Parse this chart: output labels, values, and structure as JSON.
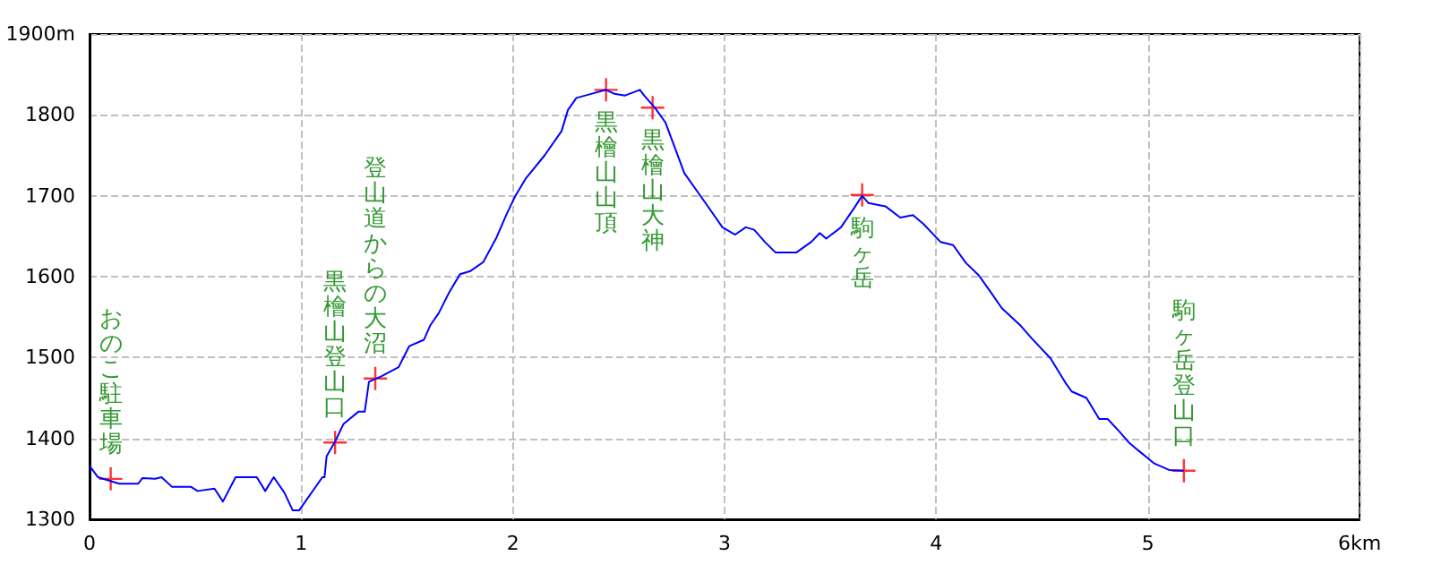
{
  "chart_data": {
    "type": "line",
    "xlim": [
      0,
      6
    ],
    "ylim": [
      1300,
      1900
    ],
    "xticks": [
      0,
      1,
      2,
      3,
      4,
      5,
      {
        "value": 6,
        "label": "6km"
      }
    ],
    "yticks": [
      1300,
      1400,
      1500,
      1600,
      1700,
      1800,
      {
        "value": 1900,
        "label": "1900m"
      }
    ],
    "grid": true,
    "marker": "none",
    "line_style": "solid",
    "series": [
      {
        "color": "#0000ff",
        "x": [
          0,
          0.04,
          0.14,
          0.23,
          0.25,
          0.31,
          0.34,
          0.39,
          0.48,
          0.51,
          0.59,
          0.63,
          0.69,
          0.79,
          0.83,
          0.87,
          0.92,
          0.96,
          0.99,
          1.1,
          1.11,
          1.12,
          1.16,
          1.2,
          1.27,
          1.3,
          1.32,
          1.38,
          1.46,
          1.51,
          1.58,
          1.61,
          1.65,
          1.7,
          1.75,
          1.8,
          1.86,
          1.92,
          1.97,
          2.01,
          2.06,
          2.15,
          2.23,
          2.26,
          2.3,
          2.37,
          2.44,
          2.48,
          2.53,
          2.6,
          2.62,
          2.67,
          2.72,
          2.81,
          2.91,
          2.99,
          3.05,
          3.1,
          3.14,
          3.19,
          3.24,
          3.34,
          3.41,
          3.45,
          3.48,
          3.55,
          3.61,
          3.65,
          3.68,
          3.76,
          3.83,
          3.89,
          3.94,
          4.02,
          4.08,
          4.14,
          4.2,
          4.26,
          4.31,
          4.4,
          4.45,
          4.54,
          4.61,
          4.64,
          4.71,
          4.77,
          4.81,
          4.86,
          4.91,
          4.96,
          5.03,
          5.1,
          5.17
        ],
        "values": [
          1366,
          1352,
          1344,
          1344,
          1351,
          1350,
          1352,
          1340,
          1340,
          1335,
          1338,
          1322,
          1352,
          1352,
          1335,
          1352,
          1333,
          1311,
          1311,
          1352,
          1352,
          1378,
          1396,
          1418,
          1433,
          1433,
          1470,
          1477,
          1488,
          1514,
          1522,
          1540,
          1555,
          1581,
          1603,
          1607,
          1618,
          1647,
          1677,
          1699,
          1721,
          1750,
          1780,
          1806,
          1821,
          1826,
          1831,
          1826,
          1824,
          1831,
          1824,
          1809,
          1791,
          1728,
          1691,
          1661,
          1652,
          1661,
          1658,
          1643,
          1630,
          1630,
          1643,
          1654,
          1647,
          1661,
          1684,
          1700,
          1691,
          1687,
          1673,
          1676,
          1665,
          1643,
          1639,
          1617,
          1602,
          1580,
          1561,
          1539,
          1524,
          1499,
          1469,
          1458,
          1450,
          1424,
          1424,
          1410,
          1395,
          1384,
          1369,
          1361,
          1360
        ]
      }
    ],
    "annotations": [
      {
        "text": "おのこ駐車場",
        "x": 0.1,
        "y": 1350
      },
      {
        "text": "黒檜山登山口",
        "x": 1.16,
        "y": 1395
      },
      {
        "text": "登山道からの大沼",
        "x": 1.35,
        "y": 1474
      },
      {
        "text": "黒檜山山頂",
        "x": 2.44,
        "y": 1831
      },
      {
        "text": "黒檜山大神",
        "x": 2.66,
        "y": 1809
      },
      {
        "text": "駒ヶ岳",
        "x": 3.65,
        "y": 1701
      },
      {
        "text": "駒ヶ岳登山口",
        "x": 5.17,
        "y": 1360
      }
    ]
  }
}
